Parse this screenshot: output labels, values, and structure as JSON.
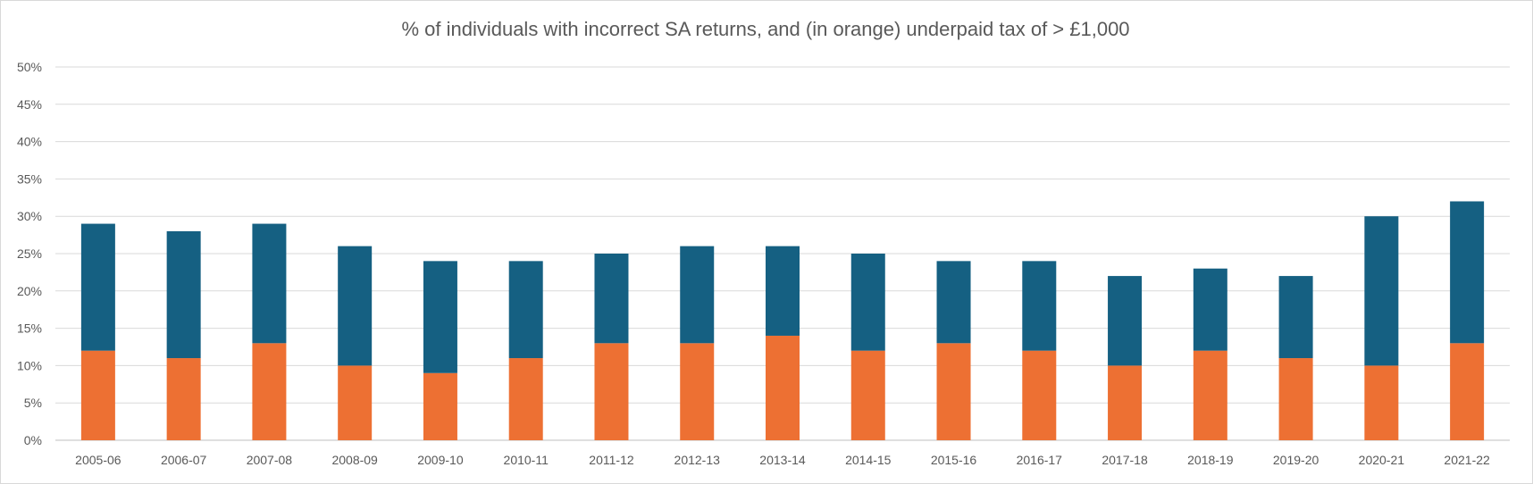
{
  "chart_data": {
    "type": "bar",
    "stacked": true,
    "title": "% of individuals with incorrect SA returns, and (in orange) underpaid tax of > £1,000",
    "xlabel": "",
    "ylabel": "",
    "ylim": [
      0,
      50
    ],
    "y_ticks": [
      "0%",
      "5%",
      "10%",
      "15%",
      "20%",
      "25%",
      "30%",
      "35%",
      "40%",
      "45%",
      "50%"
    ],
    "y_tick_values": [
      0,
      5,
      10,
      15,
      20,
      25,
      30,
      35,
      40,
      45,
      50
    ],
    "grid": true,
    "legend": "none",
    "categories": [
      "2005-06",
      "2006-07",
      "2007-08",
      "2008-09",
      "2009-10",
      "2010-11",
      "2011-12",
      "2012-13",
      "2013-14",
      "2014-15",
      "2015-16",
      "2016-17",
      "2017-18",
      "2018-19",
      "2019-20",
      "2020-21",
      "2021-22"
    ],
    "series": [
      {
        "color": "#ed7033",
        "values": [
          12,
          11,
          13,
          10,
          9,
          11,
          13,
          13,
          14,
          12,
          13,
          12,
          10,
          12,
          11,
          10,
          13
        ]
      },
      {
        "color": "#156082",
        "values": [
          17,
          17,
          16,
          16,
          15,
          13,
          12,
          13,
          12,
          13,
          11,
          12,
          12,
          11,
          11,
          20,
          19
        ]
      }
    ],
    "totals": [
      29,
      28,
      29,
      26,
      24,
      24,
      25,
      26,
      26,
      25,
      24,
      24,
      22,
      23,
      22,
      30,
      32
    ]
  }
}
